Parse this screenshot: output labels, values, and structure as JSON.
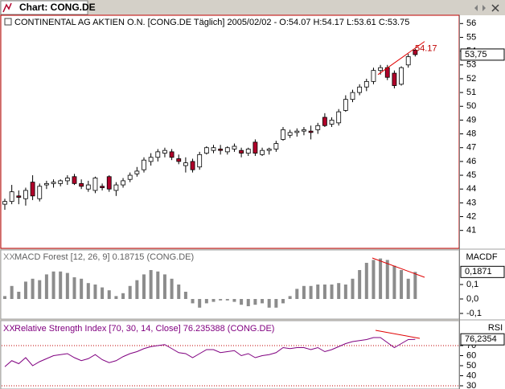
{
  "window": {
    "title": "Chart: CONG.DE"
  },
  "chart_data": [
    {
      "type": "candlestick",
      "title": "CONTINENTAL AG AKTIEN O.N. [CONG.DE  Täglich] 2005/02/02 - O:54.07 H:54.17 L:53.61 C:53.75",
      "open": [
        42.9,
        43.1,
        43.5,
        43.3,
        44.5,
        43.3,
        44.3,
        44.4,
        44.4,
        44.6,
        44.9,
        44.4,
        44.0,
        43.9,
        44.2,
        44.9,
        43.9,
        44.3,
        44.7,
        45.1,
        45.4,
        46.0,
        46.3,
        46.6,
        46.7,
        46.2,
        45.7,
        46.0,
        45.6,
        46.6,
        46.8,
        46.9,
        46.7,
        46.9,
        46.8,
        46.6,
        47.4,
        46.5,
        46.8,
        46.9,
        47.6,
        47.9,
        48.1,
        48.2,
        48.2,
        48.3,
        49.2,
        48.7,
        48.8,
        49.7,
        50.5,
        51.0,
        51.4,
        51.8,
        52.6,
        52.8,
        52.4,
        51.6,
        53.0,
        54.07
      ],
      "high": [
        43.3,
        44.3,
        43.9,
        44.1,
        45.0,
        44.4,
        44.6,
        44.7,
        44.7,
        45.0,
        45.1,
        44.7,
        44.6,
        44.9,
        44.4,
        45.0,
        44.5,
        44.8,
        45.2,
        45.6,
        46.3,
        46.6,
        46.9,
        47.0,
        46.9,
        46.5,
        46.3,
        46.2,
        46.7,
        47.1,
        47.2,
        47.2,
        47.1,
        47.3,
        47.0,
        47.0,
        47.6,
        47.0,
        47.0,
        47.5,
        48.5,
        48.3,
        48.4,
        48.5,
        48.6,
        48.8,
        49.5,
        49.2,
        49.8,
        50.8,
        51.2,
        51.6,
        52.0,
        52.8,
        53.0,
        53.0,
        52.6,
        52.9,
        53.8,
        54.17
      ],
      "low": [
        42.5,
        42.9,
        42.9,
        42.8,
        43.2,
        43.1,
        44.0,
        44.1,
        44.2,
        44.3,
        44.3,
        44.0,
        43.8,
        43.7,
        43.9,
        43.8,
        43.5,
        44.1,
        44.5,
        44.9,
        45.2,
        45.7,
        46.0,
        46.3,
        46.1,
        45.8,
        45.2,
        45.2,
        45.4,
        46.5,
        46.6,
        46.5,
        46.5,
        46.7,
        46.3,
        46.4,
        46.4,
        46.4,
        46.5,
        46.7,
        47.5,
        47.7,
        47.8,
        47.9,
        47.6,
        48.0,
        48.5,
        48.5,
        48.6,
        49.6,
        50.3,
        50.8,
        51.1,
        51.6,
        52.3,
        51.9,
        51.3,
        51.5,
        52.8,
        53.61
      ],
      "close": [
        43.1,
        43.8,
        43.4,
        43.9,
        43.5,
        44.2,
        44.4,
        44.5,
        44.6,
        44.8,
        44.4,
        44.2,
        44.3,
        44.8,
        44.1,
        44.0,
        44.3,
        44.6,
        45.0,
        45.3,
        46.1,
        46.3,
        46.7,
        46.8,
        46.3,
        46.0,
        45.9,
        45.4,
        46.5,
        47.0,
        47.0,
        46.8,
        47.0,
        47.1,
        46.6,
        46.9,
        46.6,
        46.8,
        46.9,
        47.3,
        48.3,
        48.1,
        48.2,
        48.3,
        48.1,
        48.6,
        48.6,
        49.0,
        49.6,
        50.5,
        51.0,
        51.4,
        51.8,
        52.6,
        52.8,
        52.1,
        51.5,
        52.8,
        53.6,
        53.75
      ],
      "up_color": "#ffffff",
      "down_color": "#b0002a",
      "ylim": [
        39.7,
        56.6
      ],
      "yticks": [
        41,
        42,
        43,
        44,
        45,
        46,
        47,
        48,
        49,
        50,
        51,
        52,
        53,
        54,
        55,
        56
      ],
      "last_value": {
        "value": 53.75,
        "label": "53,75"
      },
      "annotation": 54.17
    },
    {
      "type": "bar",
      "title": "MACD Forest [12, 26, 9] 0.18715 (CONG.DE)",
      "axis_title": "MACDF",
      "values": [
        0.02,
        0.09,
        0.05,
        0.12,
        0.14,
        0.13,
        0.17,
        0.19,
        0.19,
        0.18,
        0.15,
        0.14,
        0.11,
        0.1,
        0.08,
        0.06,
        0.02,
        0.04,
        0.09,
        0.13,
        0.17,
        0.2,
        0.19,
        0.17,
        0.14,
        0.1,
        0.05,
        -0.03,
        -0.06,
        -0.03,
        -0.02,
        -0.01,
        -0.01,
        -0.02,
        -0.04,
        -0.05,
        -0.04,
        -0.03,
        -0.06,
        -0.06,
        -0.03,
        0.02,
        0.07,
        0.09,
        0.09,
        0.1,
        0.1,
        0.1,
        0.11,
        0.1,
        0.14,
        0.2,
        0.25,
        0.27,
        0.28,
        0.27,
        0.23,
        0.2,
        0.14,
        0.18715
      ],
      "color": "#8c8c8c",
      "ylim": [
        -0.139,
        0.339
      ],
      "yticks": [
        {
          "value": 0.1,
          "label": "0,1"
        },
        {
          "value": 0,
          "label": "0,0"
        },
        {
          "value": -0.1,
          "label": "-0,1"
        }
      ],
      "last_value": {
        "value": 0.1871,
        "label": "0,1871"
      }
    },
    {
      "type": "line",
      "title": "Relative Strength Index [70, 30, 14, Close] 76.235388 (CONG.DE)",
      "axis_title": "RSI",
      "values": [
        49,
        55,
        52,
        58,
        50,
        54,
        57,
        60,
        61,
        62,
        58,
        55,
        57,
        61,
        56,
        53,
        55,
        59,
        62,
        64,
        67,
        69,
        70,
        71,
        67,
        63,
        62,
        58,
        62,
        66,
        66,
        63,
        64,
        65,
        60,
        62,
        58,
        60,
        61,
        63,
        68,
        67,
        68,
        68,
        66,
        68,
        64,
        66,
        69,
        72,
        74,
        75,
        76,
        78,
        78,
        73,
        68,
        72,
        76,
        76.235388
      ],
      "color": "#800080",
      "ylim": [
        26.8,
        94.8
      ],
      "yticks": [
        70,
        60,
        50,
        40,
        30
      ],
      "levels": [
        70,
        30
      ],
      "last_value": {
        "value": 76.2354,
        "label": "76,2354"
      }
    }
  ]
}
